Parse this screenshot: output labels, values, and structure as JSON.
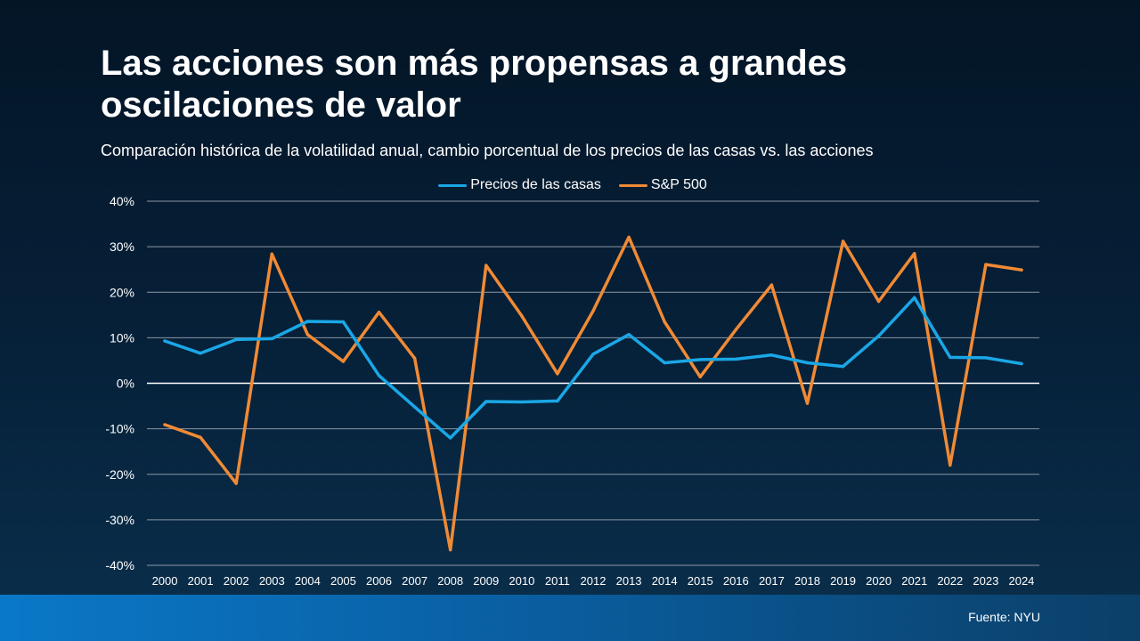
{
  "header": {
    "title": "Las acciones son más propensas a grandes oscilaciones de valor",
    "subtitle": "Comparación histórica de la volatilidad anual, cambio porcentual de los precios de las casas vs. las acciones"
  },
  "footer": {
    "source": "Fuente: NYU"
  },
  "colors": {
    "home": "#1aa7e6",
    "sp": "#f08a35",
    "grid": "#8a97a4",
    "zero": "#ffffff"
  },
  "chart_data": {
    "type": "line",
    "title": "Las acciones son más propensas a grandes oscilaciones de valor",
    "subtitle": "Comparación histórica de la volatilidad anual, cambio porcentual de los precios de las casas vs. las acciones",
    "xlabel": "",
    "ylabel": "",
    "ylim": [
      -40,
      40
    ],
    "ytick_step": 10,
    "ytick_labels": [
      "40%",
      "30%",
      "20%",
      "10%",
      "0%",
      "-10%",
      "-20%",
      "-30%",
      "-40%"
    ],
    "grid": true,
    "legend_position": "top-center",
    "categories": [
      "2000",
      "2001",
      "2002",
      "2003",
      "2004",
      "2005",
      "2006",
      "2007",
      "2008",
      "2009",
      "2010",
      "2011",
      "2012",
      "2013",
      "2014",
      "2015",
      "2016",
      "2017",
      "2018",
      "2019",
      "2020",
      "2021",
      "2022",
      "2023",
      "2024"
    ],
    "series": [
      {
        "name": "Precios de las casas",
        "color": "#1aa7e6",
        "values": [
          9.3,
          6.6,
          9.6,
          9.8,
          13.6,
          13.5,
          1.7,
          -5.2,
          -12.0,
          -4.0,
          -4.1,
          -3.9,
          6.4,
          10.7,
          4.5,
          5.2,
          5.3,
          6.2,
          4.5,
          3.7,
          10.4,
          18.8,
          5.7,
          5.6,
          4.3
        ]
      },
      {
        "name": "S&P 500",
        "color": "#f08a35",
        "values": [
          -9.1,
          -11.9,
          -22.0,
          28.4,
          10.7,
          4.8,
          15.6,
          5.5,
          -36.6,
          25.9,
          14.8,
          2.1,
          15.9,
          32.1,
          13.5,
          1.4,
          11.8,
          21.6,
          -4.4,
          31.2,
          18.0,
          28.5,
          -18.0,
          26.1,
          24.9
        ]
      }
    ]
  }
}
